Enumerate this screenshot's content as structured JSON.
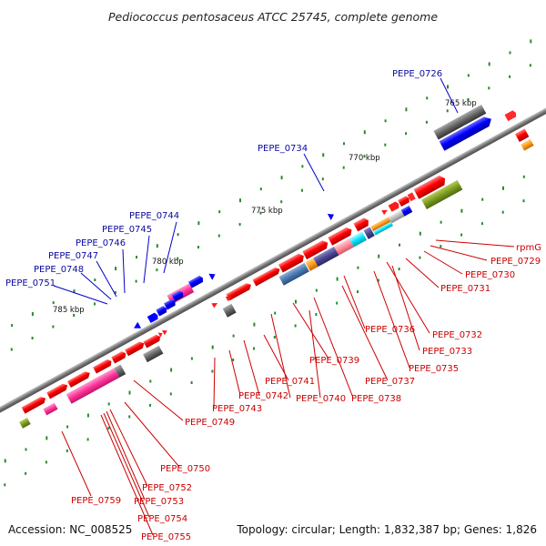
{
  "title": "Pediococcus pentosaceus ATCC 25745, complete genome",
  "footer": {
    "accession": "Accession: NC_008525",
    "topology": "Topology: circular; Length: 1,832,387 bp; Genes: 1,826"
  },
  "ticks": [
    "765 kbp",
    "770 kbp",
    "775 kbp",
    "780 kbp",
    "785 kbp"
  ],
  "labels_blue": [
    "PEPE_0726",
    "PEPE_0734",
    "PEPE_0744",
    "PEPE_0745",
    "PEPE_0746",
    "PEPE_0747",
    "PEPE_0748",
    "PEPE_0751"
  ],
  "labels_red": [
    "rpmG",
    "PEPE_0729",
    "PEPE_0730",
    "PEPE_0731",
    "PEPE_0732",
    "PEPE_0733",
    "PEPE_0735",
    "PEPE_0736",
    "PEPE_0737",
    "PEPE_0738",
    "PEPE_0739",
    "PEPE_0740",
    "PEPE_0741",
    "PEPE_0742",
    "PEPE_0743",
    "PEPE_0749",
    "PEPE_0750",
    "PEPE_0752",
    "PEPE_0753",
    "PEPE_0754",
    "PEPE_0755",
    "PEPE_0759"
  ],
  "colors": {
    "backbone": "#7a7a7a",
    "forward_gene": "#ff0000",
    "reverse_gene": "#0000ff",
    "tick_dot": "#2a8a2a",
    "blue_label": "#0a0aa0",
    "red_label": "#cc0000"
  }
}
